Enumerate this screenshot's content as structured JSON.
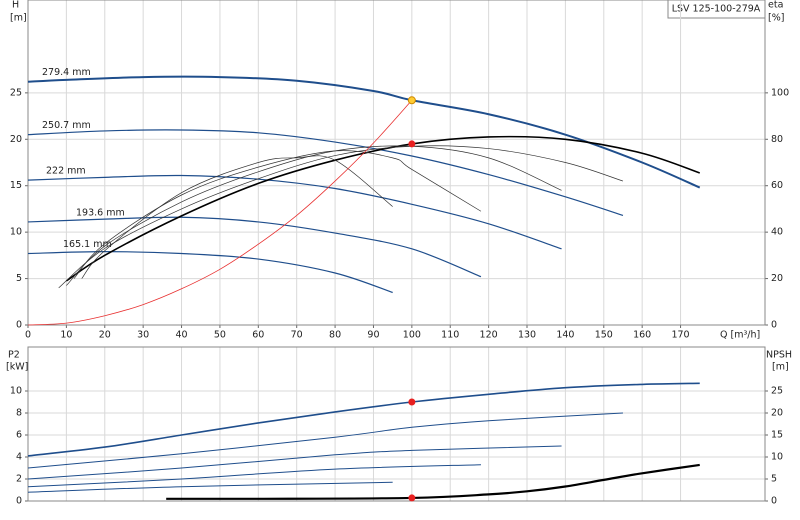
{
  "chart_data": [
    {
      "type": "line",
      "title": "LSV 125-100-279A",
      "xlabel": "Q [m³/h]",
      "ylabel": "H",
      "yunit": "[m]",
      "y2label": "eta",
      "y2unit": "[%]",
      "xlim": [
        0,
        192
      ],
      "xticks": [
        0,
        10,
        20,
        30,
        40,
        50,
        60,
        70,
        80,
        90,
        100,
        110,
        120,
        130,
        140,
        150,
        160,
        170
      ],
      "ylim": [
        0,
        35
      ],
      "yticks": [
        0,
        5,
        10,
        15,
        20,
        25
      ],
      "y2lim": [
        0,
        140
      ],
      "y2ticks": [
        0,
        20,
        40,
        60,
        80,
        100
      ],
      "grid": true,
      "series": [
        {
          "name": "279.4 mm",
          "color": "#1f4e8c",
          "width": 2,
          "x": [
            0,
            10,
            30,
            50,
            70,
            90,
            100,
            120,
            140,
            160,
            175
          ],
          "values": [
            26.2,
            26.4,
            26.7,
            26.7,
            26.3,
            25.2,
            24.2,
            22.7,
            20.5,
            17.5,
            14.8
          ]
        },
        {
          "name": "250.7 mm",
          "color": "#1f4e8c",
          "width": 1.2,
          "x": [
            0,
            20,
            40,
            60,
            80,
            100,
            120,
            140,
            155
          ],
          "values": [
            20.5,
            20.9,
            21.0,
            20.7,
            19.7,
            18.2,
            16.2,
            13.8,
            11.8
          ]
        },
        {
          "name": "222 mm",
          "color": "#1f4e8c",
          "width": 1.2,
          "x": [
            0,
            20,
            40,
            60,
            80,
            100,
            120,
            139
          ],
          "values": [
            15.6,
            15.9,
            16.1,
            15.7,
            14.7,
            13.0,
            10.9,
            8.2
          ]
        },
        {
          "name": "193.6 mm",
          "color": "#1f4e8c",
          "width": 1.2,
          "x": [
            0,
            20,
            40,
            60,
            80,
            100,
            118
          ],
          "values": [
            11.1,
            11.4,
            11.6,
            11.1,
            9.9,
            8.2,
            5.2
          ]
        },
        {
          "name": "165.1 mm",
          "color": "#1f4e8c",
          "width": 1.2,
          "x": [
            0,
            20,
            40,
            60,
            80,
            95
          ],
          "values": [
            7.7,
            7.9,
            7.7,
            7.1,
            5.6,
            3.5
          ]
        },
        {
          "color": "#000000",
          "width": 1.6,
          "axis": "y2",
          "x": [
            10,
            20,
            40,
            60,
            80,
            100,
            120,
            140,
            160,
            175
          ],
          "values": [
            19,
            30,
            47,
            61,
            71,
            78,
            81,
            80,
            74,
            65.5
          ]
        },
        {
          "color": "#333333",
          "width": 0.7,
          "axis": "y2",
          "x": [
            8,
            20,
            40,
            60,
            80,
            100,
            120,
            140,
            155
          ],
          "values": [
            16,
            33,
            50,
            63,
            73,
            77,
            76,
            70,
            62
          ]
        },
        {
          "color": "#333333",
          "width": 0.7,
          "axis": "y2",
          "x": [
            10,
            20,
            40,
            60,
            80,
            100,
            120,
            139
          ],
          "values": [
            17,
            34,
            53,
            66,
            75,
            77,
            72,
            58
          ]
        },
        {
          "color": "#333333",
          "width": 0.7,
          "axis": "y2",
          "x": [
            12,
            20,
            40,
            60,
            80,
            95,
            100,
            118
          ],
          "values": [
            20,
            35,
            56,
            68,
            75,
            72,
            67,
            49
          ]
        },
        {
          "color": "#333333",
          "width": 0.7,
          "axis": "y2",
          "x": [
            14,
            20,
            40,
            60,
            70,
            80,
            95
          ],
          "values": [
            20,
            32,
            57,
            70,
            72,
            71,
            51
          ]
        },
        {
          "color": "#e83030",
          "width": 0.8,
          "x": [
            0,
            10,
            20,
            30,
            40,
            50,
            60,
            70,
            80,
            90,
            100
          ],
          "values": [
            0,
            0.2,
            1,
            2.2,
            3.9,
            6,
            8.7,
            11.8,
            15.5,
            19.6,
            24.2
          ]
        },
        {
          "color": "#ffcc33",
          "marker": true,
          "x": [
            100
          ],
          "values": [
            24.2
          ]
        },
        {
          "color": "#e82020",
          "marker": true,
          "axis": "y2",
          "x": [
            100
          ],
          "values": [
            78
          ]
        }
      ]
    },
    {
      "type": "line",
      "ylabel": "P2",
      "yunit": "[kW]",
      "y2label": "NPSH",
      "y2unit": "[m]",
      "xlim": [
        0,
        192
      ],
      "ylim": [
        0,
        14
      ],
      "yticks": [
        0,
        2,
        4,
        6,
        8,
        10
      ],
      "y2lim": [
        0,
        35
      ],
      "y2ticks": [
        0,
        5,
        10,
        15,
        20,
        25
      ],
      "grid": true,
      "series": [
        {
          "color": "#1f4e8c",
          "width": 1.6,
          "x": [
            0,
            20,
            40,
            60,
            80,
            100,
            120,
            140,
            160,
            175
          ],
          "values": [
            4.1,
            4.9,
            6.0,
            7.1,
            8.1,
            9.0,
            9.7,
            10.3,
            10.6,
            10.7
          ]
        },
        {
          "color": "#1f4e8c",
          "width": 1,
          "x": [
            0,
            40,
            80,
            100,
            120,
            155
          ],
          "values": [
            3.0,
            4.3,
            5.8,
            6.7,
            7.3,
            8.0
          ]
        },
        {
          "color": "#1f4e8c",
          "width": 1,
          "x": [
            0,
            40,
            80,
            100,
            139
          ],
          "values": [
            2.0,
            3.0,
            4.2,
            4.6,
            5.0
          ]
        },
        {
          "color": "#1f4e8c",
          "width": 1,
          "x": [
            0,
            40,
            80,
            118
          ],
          "values": [
            1.3,
            2.0,
            2.9,
            3.3
          ]
        },
        {
          "color": "#1f4e8c",
          "width": 1,
          "x": [
            0,
            40,
            95
          ],
          "values": [
            0.8,
            1.3,
            1.7
          ]
        },
        {
          "color": "#000000",
          "width": 2.2,
          "axis": "y2",
          "x": [
            36,
            60,
            100,
            120,
            130,
            140,
            150,
            160,
            175
          ],
          "values": [
            0.5,
            0.5,
            0.7,
            1.5,
            2.2,
            3.3,
            4.8,
            6.3,
            8.2
          ]
        },
        {
          "color": "#e82020",
          "marker": true,
          "x": [
            100
          ],
          "values": [
            9.0
          ]
        },
        {
          "color": "#e82020",
          "marker": true,
          "axis": "y2",
          "x": [
            100
          ],
          "values": [
            0.7
          ]
        }
      ]
    }
  ]
}
